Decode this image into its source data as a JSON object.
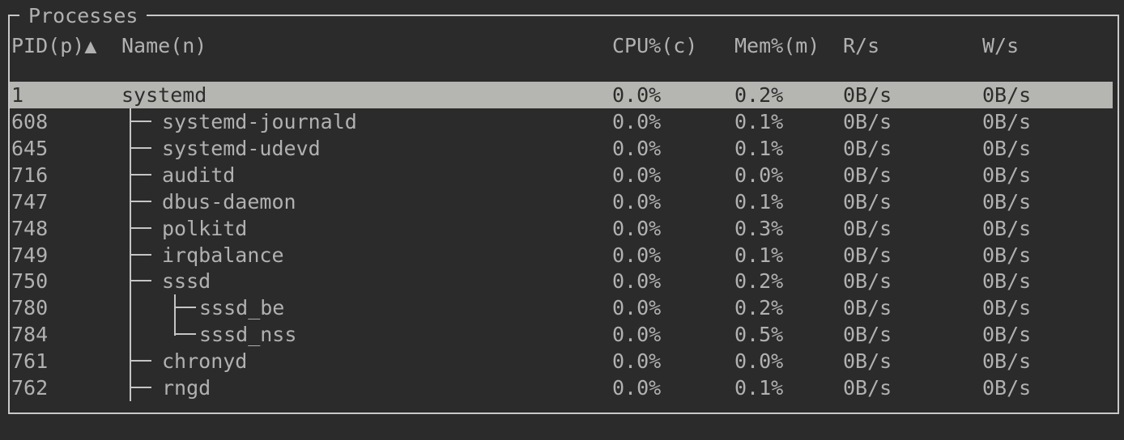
{
  "panel": {
    "title": "Processes"
  },
  "header": {
    "pid": "PID(p)",
    "sort_indicator": "▲",
    "name": "Name(n)",
    "cpu": "CPU%(c)",
    "mem": "Mem%(m)",
    "read": "R/s",
    "write": "W/s"
  },
  "rows": [
    {
      "pid": "1",
      "name": "systemd",
      "depth": 0,
      "branch": "none",
      "cpu": "0.0%",
      "mem": "0.2%",
      "read": "0B/s",
      "write": "0B/s",
      "selected": true
    },
    {
      "pid": "608",
      "name": "systemd-journald",
      "depth": 1,
      "branch": "tee",
      "cpu": "0.0%",
      "mem": "0.1%",
      "read": "0B/s",
      "write": "0B/s",
      "selected": false
    },
    {
      "pid": "645",
      "name": "systemd-udevd",
      "depth": 1,
      "branch": "tee",
      "cpu": "0.0%",
      "mem": "0.1%",
      "read": "0B/s",
      "write": "0B/s",
      "selected": false
    },
    {
      "pid": "716",
      "name": "auditd",
      "depth": 1,
      "branch": "tee",
      "cpu": "0.0%",
      "mem": "0.0%",
      "read": "0B/s",
      "write": "0B/s",
      "selected": false
    },
    {
      "pid": "747",
      "name": "dbus-daemon",
      "depth": 1,
      "branch": "tee",
      "cpu": "0.0%",
      "mem": "0.1%",
      "read": "0B/s",
      "write": "0B/s",
      "selected": false
    },
    {
      "pid": "748",
      "name": "polkitd",
      "depth": 1,
      "branch": "tee",
      "cpu": "0.0%",
      "mem": "0.3%",
      "read": "0B/s",
      "write": "0B/s",
      "selected": false
    },
    {
      "pid": "749",
      "name": "irqbalance",
      "depth": 1,
      "branch": "tee",
      "cpu": "0.0%",
      "mem": "0.1%",
      "read": "0B/s",
      "write": "0B/s",
      "selected": false
    },
    {
      "pid": "750",
      "name": "sssd",
      "depth": 1,
      "branch": "tee",
      "cpu": "0.0%",
      "mem": "0.2%",
      "read": "0B/s",
      "write": "0B/s",
      "selected": false
    },
    {
      "pid": "780",
      "name": "sssd_be",
      "depth": 2,
      "branch": "tee",
      "cpu": "0.0%",
      "mem": "0.2%",
      "read": "0B/s",
      "write": "0B/s",
      "selected": false
    },
    {
      "pid": "784",
      "name": "sssd_nss",
      "depth": 2,
      "branch": "corner",
      "cpu": "0.0%",
      "mem": "0.5%",
      "read": "0B/s",
      "write": "0B/s",
      "selected": false
    },
    {
      "pid": "761",
      "name": "chronyd",
      "depth": 1,
      "branch": "tee",
      "cpu": "0.0%",
      "mem": "0.0%",
      "read": "0B/s",
      "write": "0B/s",
      "selected": false
    },
    {
      "pid": "762",
      "name": "rngd",
      "depth": 1,
      "branch": "tee",
      "cpu": "0.0%",
      "mem": "0.1%",
      "read": "0B/s",
      "write": "0B/s",
      "selected": false
    }
  ],
  "colors": {
    "background": "#2b2b2b",
    "border": "#c9c9c9",
    "text": "#b1b1b1",
    "selected_background": "#b5b6b2",
    "selected_text": "#2d2d2d",
    "tree_line": "#c5c5c5"
  }
}
